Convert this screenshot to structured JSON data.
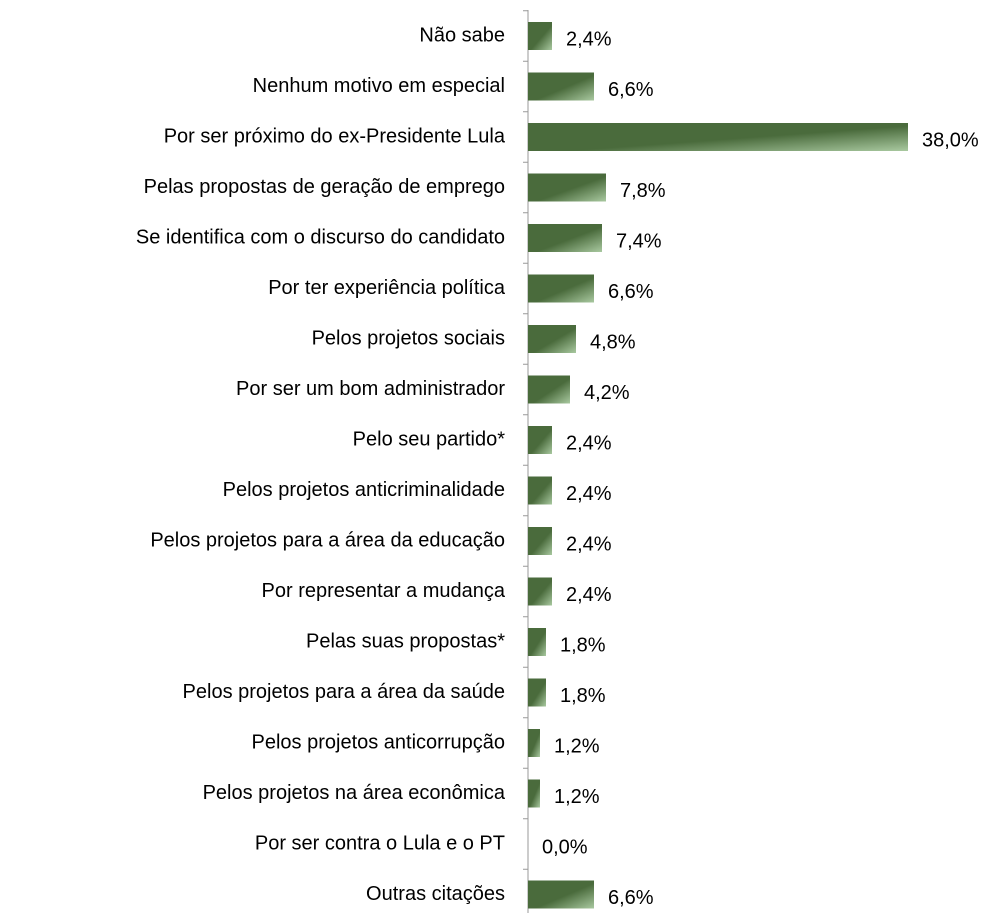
{
  "chart_data": {
    "type": "hbar",
    "categories": [
      "Não sabe",
      "Nenhum motivo em especial",
      "Por ser próximo do ex-Presidente Lula",
      "Pelas propostas de geração de emprego",
      "Se identifica com o discurso do candidato",
      "Por ter experiência política",
      "Pelos projetos sociais",
      "Por ser um bom administrador",
      "Pelo seu partido*",
      "Pelos projetos anticriminalidade",
      "Pelos projetos para a área da educação",
      "Por representar a mudança",
      "Pelas suas propostas*",
      "Pelos projetos para a área da saúde",
      "Pelos projetos anticorrupção",
      "Pelos projetos na área econômica",
      "Por ser contra o Lula e o PT",
      "Outras citações"
    ],
    "values": [
      2.4,
      6.6,
      38.0,
      7.8,
      7.4,
      6.6,
      4.8,
      4.2,
      2.4,
      2.4,
      2.4,
      2.4,
      1.8,
      1.8,
      1.2,
      1.2,
      0.0,
      6.6
    ],
    "value_labels": [
      "2,4%",
      "6,6%",
      "38,0%",
      "7,8%",
      "7,4%",
      "6,6%",
      "4,8%",
      "4,2%",
      "2,4%",
      "2,4%",
      "2,4%",
      "2,4%",
      "1,8%",
      "1,8%",
      "1,2%",
      "1,2%",
      "0,0%",
      "6,6%"
    ],
    "color": "#4a6b3c",
    "xlim": [
      0,
      38
    ]
  }
}
